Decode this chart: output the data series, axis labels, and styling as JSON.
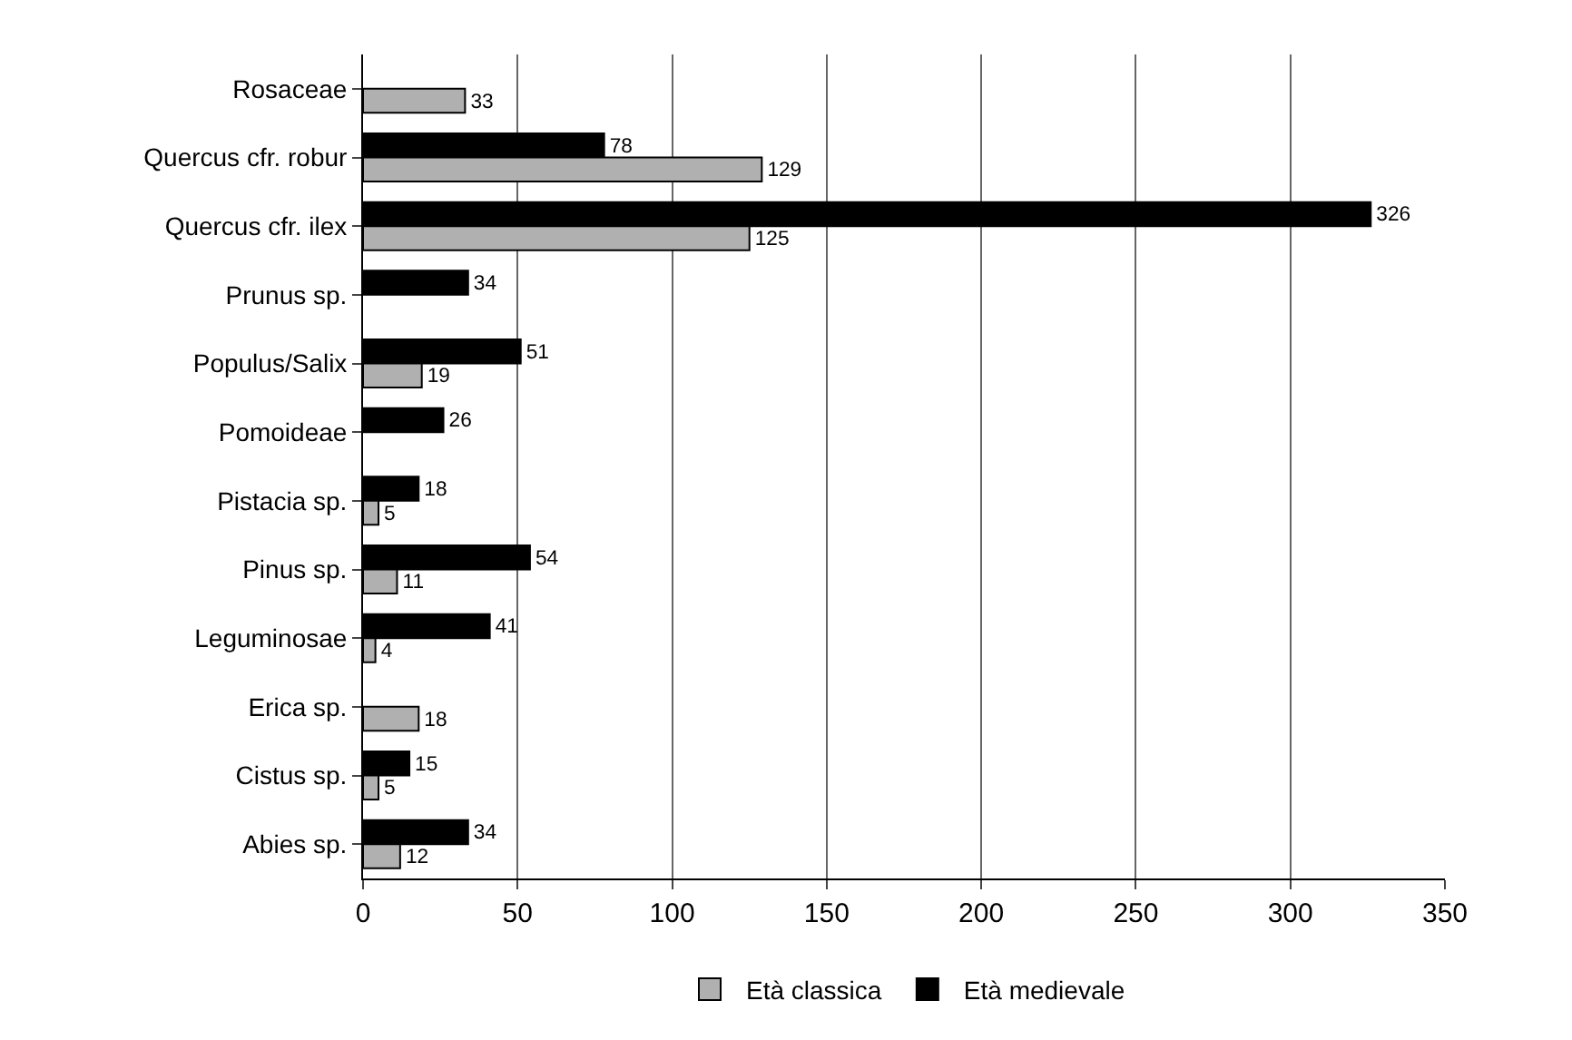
{
  "chart_data": {
    "type": "bar",
    "orientation": "horizontal",
    "categories": [
      "Rosaceae",
      "Quercus cfr. robur",
      "Quercus cfr. ilex",
      "Prunus sp.",
      "Populus/Salix",
      "Pomoideae",
      "Pistacia sp.",
      "Pinus sp.",
      "Leguminosae",
      "Erica sp.",
      "Cistus sp.",
      "Abies sp."
    ],
    "series": [
      {
        "name": "Età classica",
        "color": "#b0b0b0",
        "values": [
          33,
          129,
          125,
          null,
          19,
          null,
          5,
          11,
          4,
          18,
          5,
          12
        ]
      },
      {
        "name": "Età medievale",
        "color": "#000000",
        "values": [
          null,
          78,
          326,
          34,
          51,
          26,
          18,
          54,
          41,
          null,
          15,
          34
        ]
      }
    ],
    "xlim": [
      0,
      350
    ],
    "xticks": [
      0,
      50,
      100,
      150,
      200,
      250,
      300,
      350
    ],
    "grid": "x",
    "legend": "bottom",
    "data_labels": true
  }
}
